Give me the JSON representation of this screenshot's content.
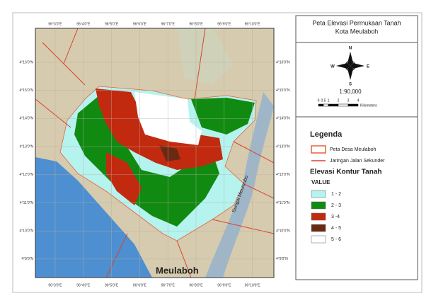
{
  "title": [
    "Peta Elevasi Permukaan Tanah",
    "Kota Meulaboh"
  ],
  "grid": {
    "longitudes": [
      "96°3'0\"E",
      "96°4'0\"E",
      "96°5'0\"E",
      "96°6'0\"E",
      "96°7'0\"E",
      "96°8'0\"E",
      "96°9'0\"E",
      "96°10'0\"E"
    ],
    "latitudes": [
      "4°16'0\"N",
      "4°15'0\"N",
      "4°14'0\"N",
      "4°13'0\"N",
      "4°12'0\"N",
      "4°11'0\"N",
      "4°10'0\"N",
      "4°9'0\"N"
    ]
  },
  "map_labels": {
    "town": "Meulaboh",
    "river": "Sungai Meureubo"
  },
  "north_arrow": {
    "n": "N",
    "e": "E",
    "s": "S",
    "w": "W"
  },
  "scale": {
    "ratio": "1:90,000",
    "bar_labels": [
      "0",
      "0.5",
      "1",
      "2",
      "3",
      "4"
    ],
    "unit": "Kilometers"
  },
  "legend": {
    "title": "Legenda",
    "items": [
      {
        "label": "Peta Desa Meulaboh",
        "color": "#e8603a"
      },
      {
        "label": "Jaringan Jalan Sekunder",
        "color": "#d9432a"
      }
    ],
    "elevation": {
      "title": "Elevasi Kontur Tanah",
      "field": "VALUE",
      "classes": [
        {
          "label": "1 - 2",
          "color": "#b5f3ef"
        },
        {
          "label": "2 - 3",
          "color": "#118a12"
        },
        {
          "label": "3 -4",
          "color": "#c22a10"
        },
        {
          "label": "4 - 5",
          "color": "#6a2a12"
        },
        {
          "label": "5 - 6",
          "color": "#ffffff"
        }
      ]
    }
  }
}
